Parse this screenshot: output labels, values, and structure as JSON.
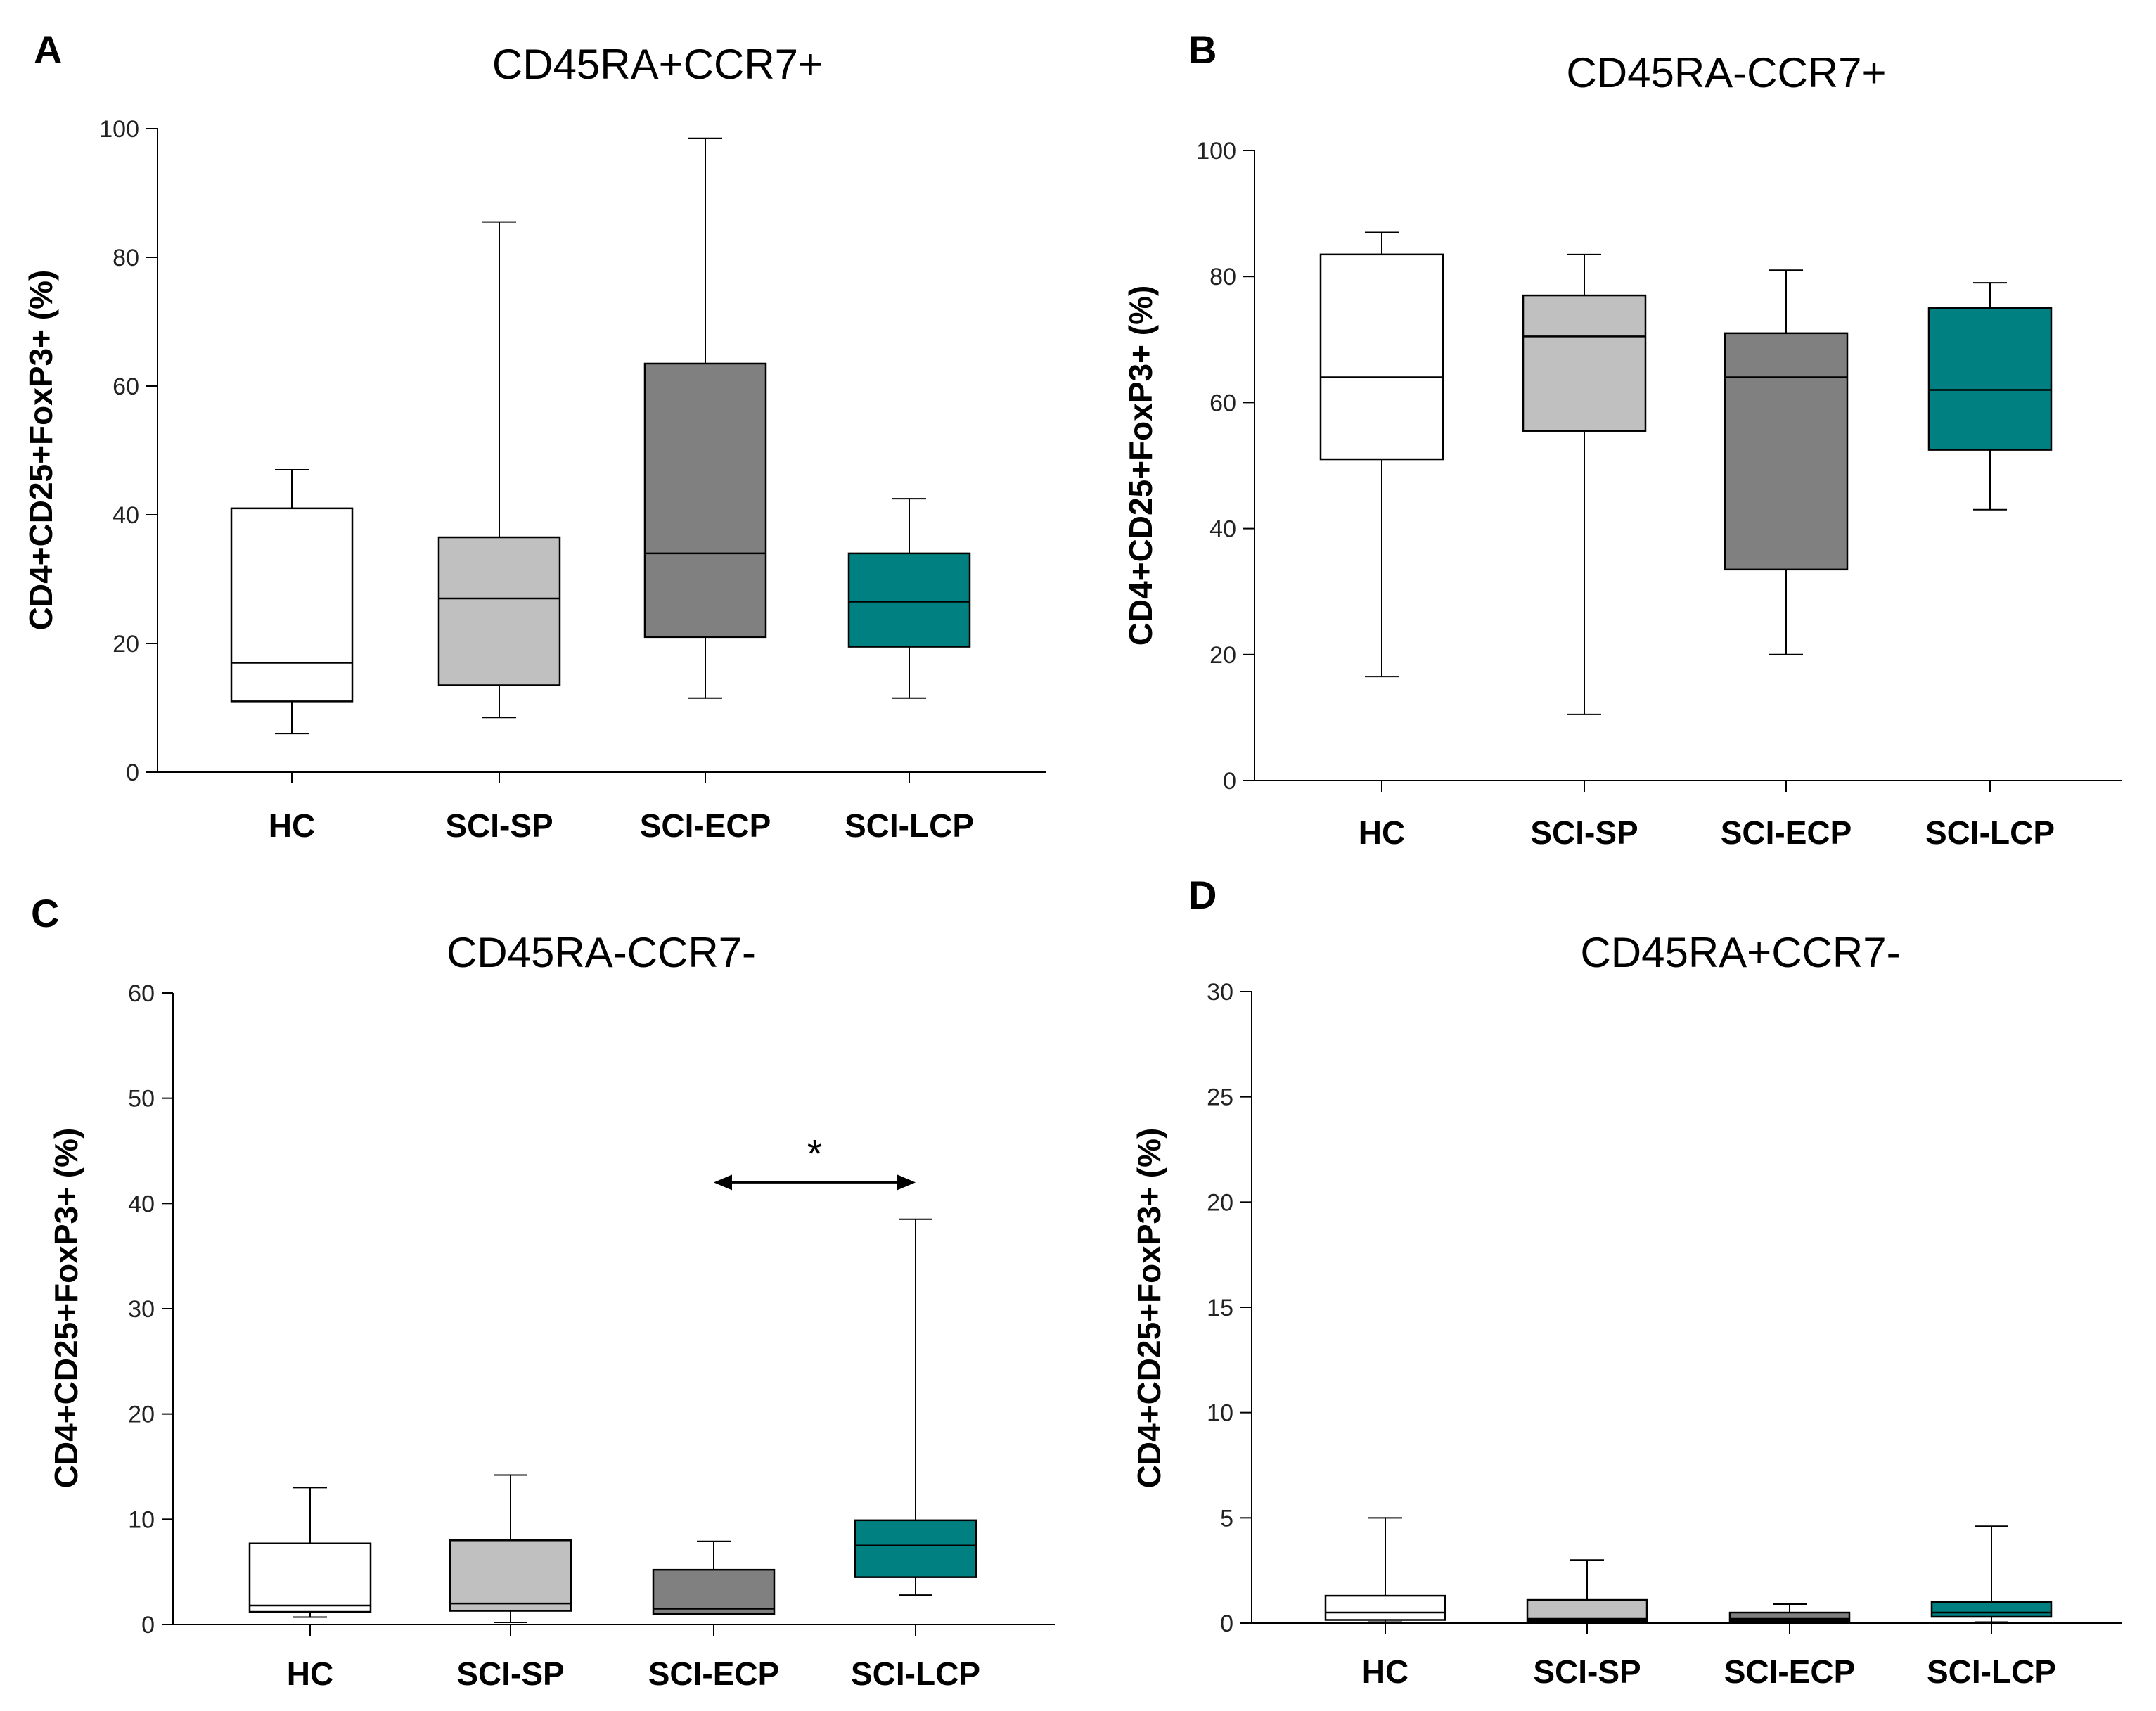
{
  "figure": {
    "y_label": "CD4+CD25+FoxP3+ (%)",
    "categories": [
      "HC",
      "SCI-SP",
      "SCI-ECP",
      "SCI-LCP"
    ],
    "colors": {
      "HC": "#ffffff",
      "SCI-SP": "#c0c0c0",
      "SCI-ECP": "#808080",
      "SCI-LCP": "#008080"
    }
  },
  "chart_data": [
    {
      "type": "box",
      "panel_label": "A",
      "title": "CD45RA+CCR7+",
      "ylabel": "CD4+CD25+FoxP3+ (%)",
      "ylim": [
        0,
        100
      ],
      "yticks": [
        0,
        20,
        40,
        60,
        80,
        100
      ],
      "series": [
        {
          "name": "HC",
          "min": 6,
          "q1": 11,
          "median": 17,
          "q3": 41,
          "max": 47
        },
        {
          "name": "SCI-SP",
          "min": 8.5,
          "q1": 13.5,
          "median": 27,
          "q3": 36.5,
          "max": 85.5
        },
        {
          "name": "SCI-ECP",
          "min": 11.5,
          "q1": 21,
          "median": 34,
          "q3": 63.5,
          "max": 98.5
        },
        {
          "name": "SCI-LCP",
          "min": 11.5,
          "q1": 19.5,
          "median": 26.5,
          "q3": 34,
          "max": 42.5
        }
      ]
    },
    {
      "type": "box",
      "panel_label": "B",
      "title": "CD45RA-CCR7+",
      "ylabel": "CD4+CD25+FoxP3+ (%)",
      "ylim": [
        0,
        100
      ],
      "yticks": [
        0,
        20,
        40,
        60,
        80,
        100
      ],
      "series": [
        {
          "name": "HC",
          "min": 16.5,
          "q1": 51,
          "median": 64,
          "q3": 83.5,
          "max": 87
        },
        {
          "name": "SCI-SP",
          "min": 10.5,
          "q1": 55.5,
          "median": 70.5,
          "q3": 77,
          "max": 83.5
        },
        {
          "name": "SCI-ECP",
          "min": 20,
          "q1": 33.5,
          "median": 64,
          "q3": 71,
          "max": 81
        },
        {
          "name": "SCI-LCP",
          "min": 43,
          "q1": 52.5,
          "median": 62,
          "q3": 75,
          "max": 79
        }
      ]
    },
    {
      "type": "box",
      "panel_label": "C",
      "title": "CD45RA-CCR7-",
      "ylabel": "CD4+CD25+FoxP3+ (%)",
      "ylim": [
        0,
        60
      ],
      "yticks": [
        0,
        10,
        20,
        30,
        40,
        50,
        60
      ],
      "annotation": {
        "text": "*",
        "from": "SCI-ECP",
        "to": "SCI-LCP",
        "y": 42
      },
      "series": [
        {
          "name": "HC",
          "min": 0.7,
          "q1": 1.2,
          "median": 1.8,
          "q3": 7.7,
          "max": 13
        },
        {
          "name": "SCI-SP",
          "min": 0.2,
          "q1": 1.3,
          "median": 2,
          "q3": 8,
          "max": 14.2
        },
        {
          "name": "SCI-ECP",
          "min": 1,
          "q1": 1,
          "median": 1.5,
          "q3": 5.2,
          "max": 7.9
        },
        {
          "name": "SCI-LCP",
          "min": 2.8,
          "q1": 4.5,
          "median": 7.5,
          "q3": 9.9,
          "max": 38.5
        }
      ]
    },
    {
      "type": "box",
      "panel_label": "D",
      "title": "CD45RA+CCR7-",
      "ylabel": "CD4+CD25+FoxP3+ (%)",
      "ylim": [
        0,
        30
      ],
      "yticks": [
        0,
        5,
        10,
        15,
        20,
        25,
        30
      ],
      "series": [
        {
          "name": "HC",
          "min": 0.05,
          "q1": 0.15,
          "median": 0.5,
          "q3": 1.3,
          "max": 5
        },
        {
          "name": "SCI-SP",
          "min": 0.05,
          "q1": 0.1,
          "median": 0.2,
          "q3": 1.1,
          "max": 3
        },
        {
          "name": "SCI-ECP",
          "min": 0.05,
          "q1": 0.1,
          "median": 0.2,
          "q3": 0.5,
          "max": 0.9
        },
        {
          "name": "SCI-LCP",
          "min": 0.05,
          "q1": 0.3,
          "median": 0.5,
          "q3": 1,
          "max": 4.6
        }
      ]
    }
  ]
}
